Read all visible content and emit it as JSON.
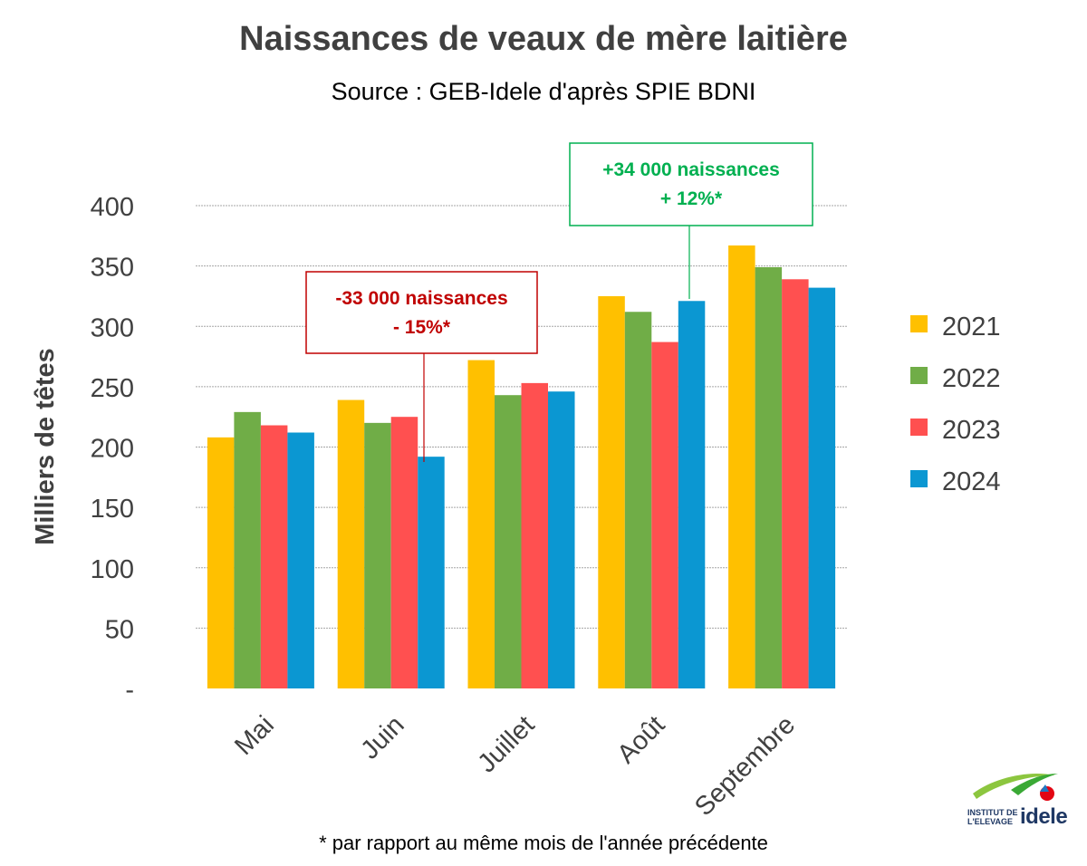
{
  "header": {
    "title": "Naissances de veaux de mère laitière",
    "subtitle": "Source : GEB-Idele d'après SPIE BDNI"
  },
  "footnote": "* par rapport au même mois de l'année précédente",
  "logo": {
    "line1": "INSTITUT DE",
    "line2": "L'ELEVAGE",
    "brand": "idele"
  },
  "annotations": [
    {
      "line1": "-33 000 naissances",
      "line2": "- 15%*",
      "color": "#c00000",
      "month": "Juin",
      "series": "2024"
    },
    {
      "line1": "+34 000 naissances",
      "line2": "+ 12%*",
      "color": "#00b050",
      "month": "Août",
      "series": "2024"
    }
  ],
  "chart_data": {
    "type": "bar",
    "ylabel": "Milliers de têtes",
    "xlabel": "",
    "ylim": [
      0,
      400
    ],
    "yticks": [
      0,
      50,
      100,
      150,
      200,
      250,
      300,
      350,
      400
    ],
    "ytick_labels": [
      "-",
      "50",
      "100",
      "150",
      "200",
      "250",
      "300",
      "350",
      "400"
    ],
    "grid": true,
    "legend_position": "right",
    "categories": [
      "Mai",
      "Juin",
      "Juillet",
      "Août",
      "Septembre"
    ],
    "series": [
      {
        "name": "2021",
        "color": "#ffc000",
        "values": [
          208,
          239,
          272,
          325,
          367
        ]
      },
      {
        "name": "2022",
        "color": "#70ad47",
        "values": [
          229,
          220,
          243,
          312,
          349
        ]
      },
      {
        "name": "2023",
        "color": "#ff5050",
        "values": [
          218,
          225,
          253,
          287,
          339
        ]
      },
      {
        "name": "2024",
        "color": "#0b97d2",
        "values": [
          212,
          192,
          246,
          321,
          332
        ]
      }
    ]
  }
}
